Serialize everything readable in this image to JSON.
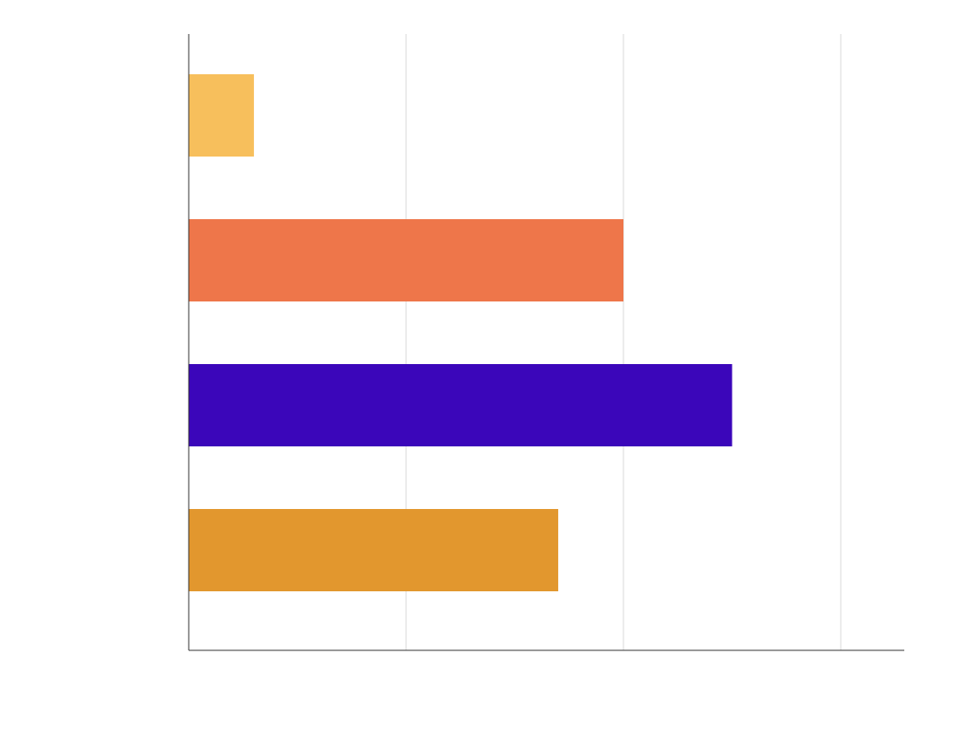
{
  "chart_data": {
    "type": "bar",
    "orientation": "horizontal",
    "title": "",
    "xlabel": "",
    "ylabel": "",
    "xlim": [
      0,
      3.3
    ],
    "x_gridlines": [
      1,
      2,
      3
    ],
    "grid": true,
    "legend": "none",
    "bars": [
      {
        "value": 0.3,
        "color": "#F7BF5C"
      },
      {
        "value": 2.0,
        "color": "#EE764A"
      },
      {
        "value": 2.5,
        "color": "#3B06BA"
      },
      {
        "value": 1.7,
        "color": "#E2972E"
      }
    ]
  }
}
